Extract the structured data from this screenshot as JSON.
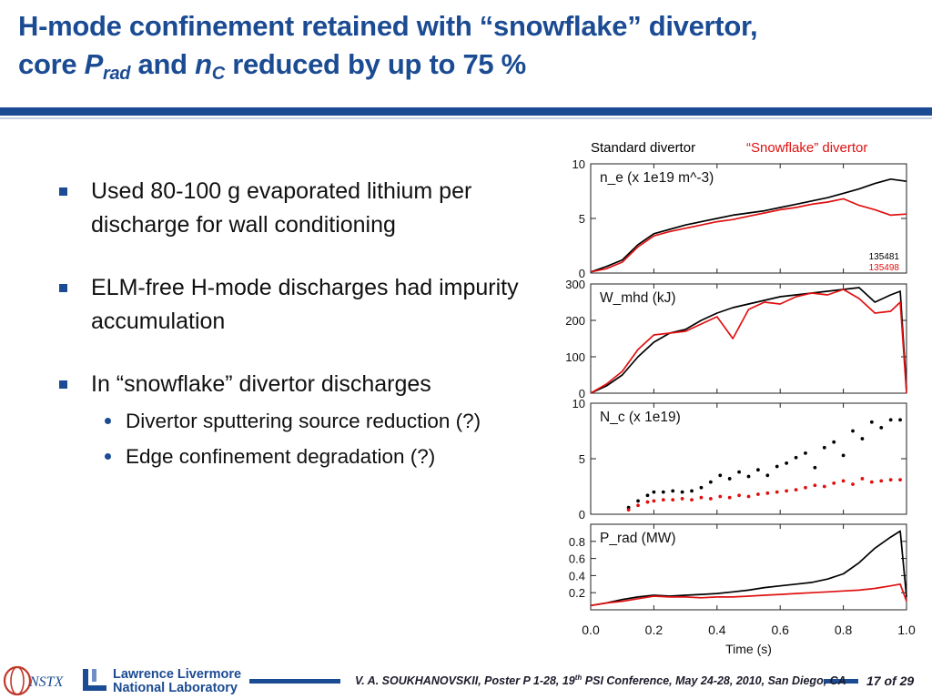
{
  "slide": {
    "title_line1": "H-mode confinement retained with “snowflake” divertor,",
    "title_core": "core ",
    "title_P": "P",
    "title_rad": "rad",
    "title_and": " and ",
    "title_n": "n",
    "title_C": "C",
    "title_rest": " reduced by up to 75 %",
    "bullets": [
      "Used 80-100 g evaporated lithium per discharge for wall conditioning",
      "ELM-free H-mode discharges had impurity accumulation",
      "In “snowflake” divertor discharges"
    ],
    "sub_bullets": [
      "Divertor sputtering source reduction (?)",
      "Edge confinement degradation (?)"
    ],
    "footer": {
      "text_before": "V. A. SOUKHANOVSKII, Poster P 1-28, 19",
      "text_sup": "th",
      "text_after": " PSI Conference, May 24-28, 2010, San Diego, CA",
      "page": "17 of 29",
      "lab_line1": "Lawrence Livermore",
      "lab_line2": "National Laboratory",
      "nstx": "NSTX"
    },
    "colors": {
      "title_blue": "#1b4b93",
      "standard": "#000000",
      "snowflake": "#e01010"
    }
  },
  "chart_data": {
    "type": "line",
    "legend": {
      "placement": "top",
      "entries": [
        "Standard divertor",
        "“Snowflake” divertor"
      ]
    },
    "xlabel": "Time (s)",
    "xlim": [
      0,
      1.0
    ],
    "xticks": [
      "0.0",
      "0.2",
      "0.4",
      "0.6",
      "0.8",
      "1.0"
    ],
    "shots": [
      "135481",
      "135498"
    ],
    "panels": [
      {
        "label": "n_e (x 1e19 m^-3)",
        "ylim": [
          0,
          10
        ],
        "yticks": [
          {
            "v": 0,
            "t": "0"
          },
          {
            "v": 5,
            "t": "5"
          },
          {
            "v": 10,
            "t": "10"
          }
        ],
        "series": [
          {
            "name": "Standard divertor",
            "style": "line",
            "x": [
              0,
              0.05,
              0.1,
              0.15,
              0.2,
              0.25,
              0.3,
              0.35,
              0.4,
              0.45,
              0.5,
              0.55,
              0.6,
              0.65,
              0.7,
              0.75,
              0.8,
              0.85,
              0.9,
              0.95,
              1.0
            ],
            "y": [
              0.1,
              0.6,
              1.2,
              2.6,
              3.6,
              4.0,
              4.4,
              4.7,
              5.0,
              5.3,
              5.5,
              5.7,
              6.0,
              6.3,
              6.6,
              6.9,
              7.3,
              7.7,
              8.2,
              8.6,
              8.4
            ]
          },
          {
            "name": "“Snowflake” divertor",
            "style": "line",
            "x": [
              0,
              0.05,
              0.1,
              0.15,
              0.2,
              0.25,
              0.3,
              0.35,
              0.4,
              0.45,
              0.5,
              0.55,
              0.6,
              0.65,
              0.7,
              0.75,
              0.8,
              0.85,
              0.9,
              0.95,
              1.0
            ],
            "y": [
              0.1,
              0.4,
              1.0,
              2.4,
              3.4,
              3.8,
              4.1,
              4.4,
              4.7,
              4.9,
              5.2,
              5.5,
              5.8,
              6.0,
              6.3,
              6.5,
              6.8,
              6.2,
              5.8,
              5.3,
              5.4
            ]
          }
        ]
      },
      {
        "label": "W_mhd (kJ)",
        "ylim": [
          0,
          300
        ],
        "yticks": [
          {
            "v": 0,
            "t": "0"
          },
          {
            "v": 100,
            "t": "100"
          },
          {
            "v": 200,
            "t": "200"
          },
          {
            "v": 300,
            "t": "300"
          }
        ],
        "series": [
          {
            "name": "Standard divertor",
            "style": "line",
            "x": [
              0,
              0.05,
              0.1,
              0.15,
              0.2,
              0.25,
              0.3,
              0.35,
              0.4,
              0.45,
              0.5,
              0.55,
              0.6,
              0.65,
              0.7,
              0.75,
              0.8,
              0.85,
              0.9,
              0.95,
              0.98,
              1.0
            ],
            "y": [
              0,
              20,
              50,
              100,
              140,
              165,
              175,
              200,
              220,
              235,
              245,
              255,
              265,
              270,
              275,
              280,
              285,
              290,
              250,
              270,
              280,
              10
            ]
          },
          {
            "name": "“Snowflake” divertor",
            "style": "line",
            "x": [
              0,
              0.05,
              0.1,
              0.15,
              0.2,
              0.25,
              0.3,
              0.35,
              0.4,
              0.45,
              0.5,
              0.55,
              0.6,
              0.65,
              0.7,
              0.75,
              0.8,
              0.85,
              0.9,
              0.95,
              0.98,
              1.0
            ],
            "y": [
              0,
              25,
              60,
              120,
              160,
              165,
              170,
              190,
              210,
              150,
              230,
              250,
              245,
              265,
              275,
              270,
              285,
              260,
              220,
              225,
              250,
              0
            ]
          }
        ]
      },
      {
        "label": "N_c (x 1e19)",
        "ylim": [
          0,
          10
        ],
        "yticks": [
          {
            "v": 0,
            "t": "0"
          },
          {
            "v": 5,
            "t": "5"
          },
          {
            "v": 10,
            "t": "10"
          }
        ],
        "series": [
          {
            "name": "Standard divertor",
            "style": "points",
            "x": [
              0.12,
              0.15,
              0.18,
              0.2,
              0.23,
              0.26,
              0.29,
              0.32,
              0.35,
              0.38,
              0.41,
              0.44,
              0.47,
              0.5,
              0.53,
              0.56,
              0.59,
              0.62,
              0.65,
              0.68,
              0.71,
              0.74,
              0.77,
              0.8,
              0.83,
              0.86,
              0.89,
              0.92,
              0.95,
              0.98
            ],
            "y": [
              0.6,
              1.2,
              1.7,
              2.0,
              2.0,
              2.1,
              2.0,
              2.1,
              2.4,
              2.9,
              3.5,
              3.2,
              3.8,
              3.4,
              4.0,
              3.5,
              4.3,
              4.6,
              5.1,
              5.5,
              4.2,
              6.0,
              6.5,
              5.3,
              7.5,
              6.8,
              8.3,
              7.8,
              8.5,
              8.5
            ]
          },
          {
            "name": "“Snowflake” divertor",
            "style": "points",
            "x": [
              0.12,
              0.15,
              0.18,
              0.2,
              0.23,
              0.26,
              0.29,
              0.32,
              0.35,
              0.38,
              0.41,
              0.44,
              0.47,
              0.5,
              0.53,
              0.56,
              0.59,
              0.62,
              0.65,
              0.68,
              0.71,
              0.74,
              0.77,
              0.8,
              0.83,
              0.86,
              0.89,
              0.92,
              0.95,
              0.98
            ],
            "y": [
              0.4,
              0.8,
              1.1,
              1.2,
              1.3,
              1.3,
              1.4,
              1.3,
              1.5,
              1.4,
              1.6,
              1.5,
              1.7,
              1.6,
              1.8,
              1.9,
              2.0,
              2.1,
              2.2,
              2.4,
              2.6,
              2.5,
              2.8,
              3.0,
              2.7,
              3.2,
              2.9,
              3.0,
              3.1,
              3.1
            ]
          }
        ]
      },
      {
        "label": "P_rad (MW)",
        "ylim": [
          0,
          1.0
        ],
        "yticks": [
          {
            "v": 0.2,
            "t": "0.2"
          },
          {
            "v": 0.4,
            "t": "0.4"
          },
          {
            "v": 0.6,
            "t": "0.6"
          },
          {
            "v": 0.8,
            "t": "0.8"
          }
        ],
        "series": [
          {
            "name": "Standard divertor",
            "style": "line",
            "x": [
              0,
              0.05,
              0.1,
              0.15,
              0.2,
              0.25,
              0.3,
              0.35,
              0.4,
              0.45,
              0.5,
              0.55,
              0.6,
              0.65,
              0.7,
              0.75,
              0.8,
              0.85,
              0.9,
              0.95,
              0.98,
              1.0
            ],
            "y": [
              0.05,
              0.08,
              0.12,
              0.15,
              0.17,
              0.16,
              0.17,
              0.18,
              0.19,
              0.21,
              0.23,
              0.26,
              0.28,
              0.3,
              0.32,
              0.36,
              0.42,
              0.55,
              0.72,
              0.85,
              0.92,
              0.15
            ]
          },
          {
            "name": "“Snowflake” divertor",
            "style": "line",
            "x": [
              0,
              0.05,
              0.1,
              0.15,
              0.2,
              0.25,
              0.3,
              0.35,
              0.4,
              0.45,
              0.5,
              0.55,
              0.6,
              0.65,
              0.7,
              0.75,
              0.8,
              0.85,
              0.9,
              0.95,
              0.98,
              1.0
            ],
            "y": [
              0.05,
              0.08,
              0.1,
              0.13,
              0.16,
              0.15,
              0.15,
              0.14,
              0.15,
              0.15,
              0.16,
              0.17,
              0.18,
              0.19,
              0.2,
              0.21,
              0.22,
              0.23,
              0.25,
              0.28,
              0.3,
              0.1
            ]
          }
        ]
      }
    ]
  }
}
